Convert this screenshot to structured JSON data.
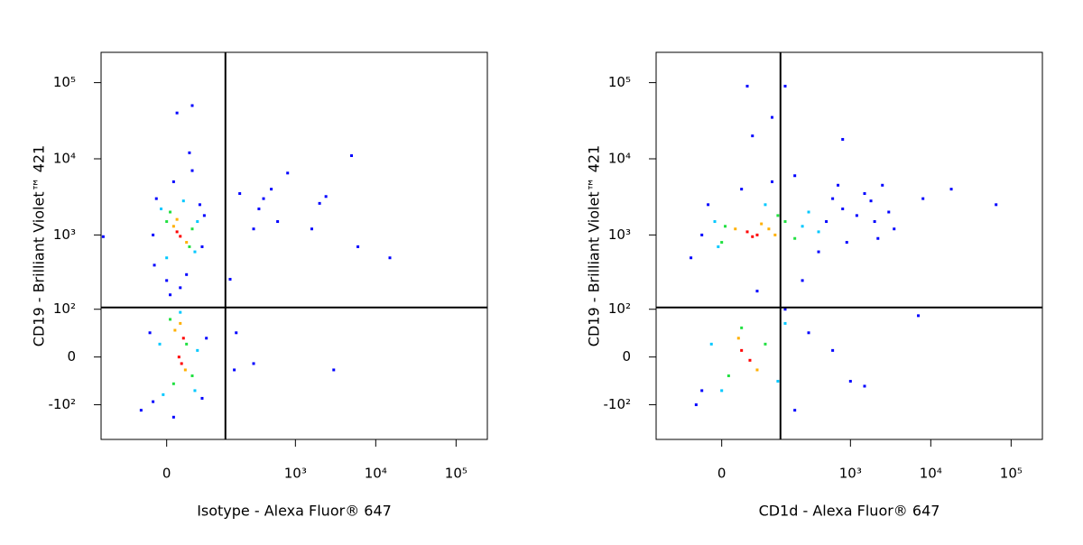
{
  "chart_data": [
    {
      "type": "scatter",
      "scale": "logicle",
      "x_label": "Isotype - Alexa Fluor® 647",
      "y_label": "CD19 - Brilliant Violet™ 421",
      "xlim": [
        -160,
        245000
      ],
      "ylim": [
        -300,
        250000
      ],
      "xticks": [
        {
          "value": 0,
          "label": "0"
        },
        {
          "value": 1000,
          "label": "10³"
        },
        {
          "value": 10000,
          "label": "10⁴"
        },
        {
          "value": 100000,
          "label": "10⁵"
        }
      ],
      "yticks": [
        {
          "value": -100,
          "label": "-10²"
        },
        {
          "value": 0,
          "label": "0"
        },
        {
          "value": 100,
          "label": "10²"
        },
        {
          "value": 1000,
          "label": "10³"
        },
        {
          "value": 10000,
          "label": "10⁴"
        },
        {
          "value": 100000,
          "label": "10⁵"
        }
      ],
      "quadrant_x": 130,
      "quadrant_y": 106,
      "series": [
        {
          "color": "#0000ff",
          "x": [
            -15,
            55,
            60,
            -18,
            10,
            40,
            30,
            20,
            0,
            -20,
            65,
            35,
            15,
            40,
            -20,
            60,
            70,
            -25,
            10,
            -40,
            5,
            -150,
            200,
            400,
            600,
            350,
            2400,
            2000,
            1600,
            5000,
            6000,
            15000,
            300,
            170,
            300,
            3000,
            500,
            800,
            150,
            180
          ],
          "values": [
            3000,
            2500,
            700,
            400,
            5000,
            7000,
            300,
            200,
            250,
            1000,
            1800,
            12000,
            40000,
            50000,
            -90,
            -80,
            30,
            40,
            -150,
            -120,
            160,
            950,
            3500,
            3000,
            1500,
            2200,
            3200,
            2600,
            1200,
            11000,
            700,
            500,
            1200,
            -20,
            -10,
            -20,
            4000,
            6500,
            260,
            40
          ]
        },
        {
          "color": "#00c8ff",
          "x": [
            -8,
            45,
            50,
            0,
            -10,
            50,
            45,
            -5,
            20,
            25
          ],
          "values": [
            2200,
            600,
            1500,
            500,
            20,
            10,
            -60,
            -70,
            90,
            2800
          ]
        },
        {
          "color": "#20e040",
          "x": [
            0,
            35,
            5,
            40,
            5,
            40,
            10,
            30
          ],
          "values": [
            1500,
            700,
            2000,
            1200,
            70,
            -30,
            -45,
            20
          ]
        },
        {
          "color": "#ffb000",
          "x": [
            10,
            30,
            12,
            28,
            20,
            15
          ],
          "values": [
            1300,
            800,
            45,
            -20,
            60,
            1600
          ]
        },
        {
          "color": "#ff0000",
          "x": [
            20,
            15,
            25,
            18,
            22
          ],
          "values": [
            960,
            1100,
            30,
            0,
            -10
          ]
        }
      ]
    },
    {
      "type": "scatter",
      "scale": "logicle",
      "x_label": "CD1d - Alexa Fluor® 647",
      "y_label": "CD19 - Brilliant Violet™ 421",
      "xlim": [
        -160,
        245000
      ],
      "ylim": [
        -300,
        250000
      ],
      "xticks": [
        {
          "value": 0,
          "label": "0"
        },
        {
          "value": 1000,
          "label": "10³"
        },
        {
          "value": 10000,
          "label": "10⁴"
        },
        {
          "value": 100000,
          "label": "10⁵"
        }
      ],
      "yticks": [
        {
          "value": -100,
          "label": "-10²"
        },
        {
          "value": 0,
          "label": "0"
        },
        {
          "value": 100,
          "label": "10²"
        },
        {
          "value": 1000,
          "label": "10³"
        },
        {
          "value": 10000,
          "label": "10⁴"
        },
        {
          "value": 100000,
          "label": "10⁵"
        }
      ],
      "quadrant_x": 130,
      "quadrant_y": 106,
      "series": [
        {
          "color": "#0000ff",
          "x": [
            -30,
            500,
            800,
            1200,
            2000,
            3000,
            1500,
            600,
            2500,
            400,
            900,
            -20,
            30,
            100,
            200,
            -40,
            200,
            300,
            600,
            1000,
            150,
            -50,
            8000,
            18000,
            65000,
            7000,
            800,
            40,
            150,
            100,
            50,
            1500,
            250,
            60,
            2200,
            3500,
            -30,
            700,
            1800
          ],
          "values": [
            1000,
            1500,
            2200,
            1800,
            1500,
            2000,
            3500,
            3000,
            4500,
            600,
            800,
            2500,
            4000,
            5000,
            6000,
            -100,
            -120,
            40,
            10,
            -40,
            100,
            500,
            3000,
            4000,
            2500,
            80,
            18000,
            90000,
            90000,
            35000,
            20000,
            -50,
            250,
            180,
            900,
            1200,
            -60,
            4500,
            2800
          ]
        },
        {
          "color": "#00c8ff",
          "x": [
            -10,
            250,
            300,
            -5,
            0,
            120,
            150,
            80,
            400,
            -15
          ],
          "values": [
            1500,
            1300,
            2000,
            700,
            -60,
            -40,
            60,
            2500,
            1100,
            20
          ]
        },
        {
          "color": "#20e040",
          "x": [
            5,
            150,
            0,
            30,
            80,
            10,
            200,
            120
          ],
          "values": [
            1300,
            1500,
            800,
            50,
            20,
            -30,
            900,
            1800
          ]
        },
        {
          "color": "#ffb000",
          "x": [
            20,
            90,
            25,
            60,
            70,
            110
          ],
          "values": [
            1200,
            1200,
            30,
            -20,
            1400,
            1000
          ]
        },
        {
          "color": "#ff0000",
          "x": [
            40,
            60,
            30,
            45,
            50
          ],
          "values": [
            1100,
            1000,
            10,
            -5,
            950
          ]
        }
      ]
    }
  ]
}
